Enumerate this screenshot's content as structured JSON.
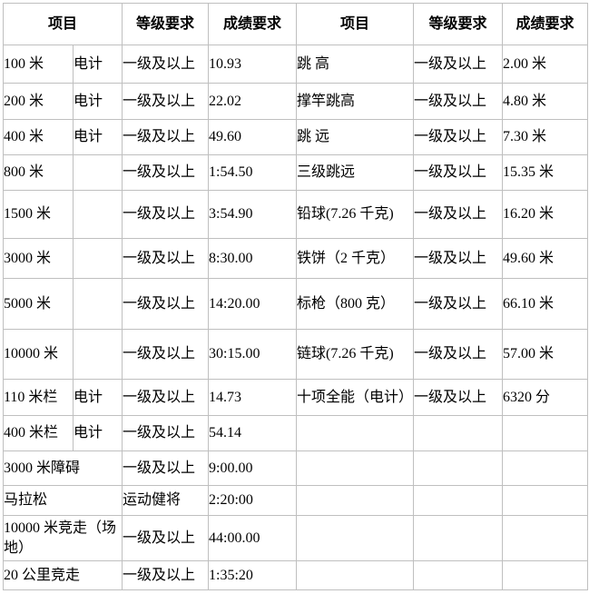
{
  "table": {
    "border_color": "#bfbfbf",
    "text_color": "#000000",
    "background_color": "#ffffff",
    "header": {
      "project": "项目",
      "grade": "等级要求",
      "result": "成绩要求"
    },
    "rows": [
      {
        "l_event": "100 米",
        "l_timing": "电计",
        "l_span": false,
        "l_grade": "一级及以上",
        "l_result": "10.93",
        "r_event": "跳 高",
        "r_grade": "一级及以上",
        "r_result": "2.00 米"
      },
      {
        "l_event": "200 米",
        "l_timing": "电计",
        "l_span": false,
        "l_grade": "一级及以上",
        "l_result": "22.02",
        "r_event": "撑竿跳高",
        "r_grade": "一级及以上",
        "r_result": "4.80 米"
      },
      {
        "l_event": "400 米",
        "l_timing": "电计",
        "l_span": false,
        "l_grade": "一级及以上",
        "l_result": "49.60",
        "r_event": "跳 远",
        "r_grade": "一级及以上",
        "r_result": "7.30 米"
      },
      {
        "l_event": "800 米",
        "l_timing": "",
        "l_span": false,
        "l_grade": "一级及以上",
        "l_result": "1:54.50",
        "r_event": "三级跳远",
        "r_grade": "一级及以上",
        "r_result": "15.35 米"
      },
      {
        "l_event": "1500 米",
        "l_timing": "",
        "l_span": false,
        "l_grade": "一级及以上",
        "l_result": "3:54.90",
        "r_event": "铅球(7.26 千克)",
        "r_grade": "一级及以上",
        "r_result": "16.20 米"
      },
      {
        "l_event": "3000 米",
        "l_timing": "",
        "l_span": false,
        "l_grade": "一级及以上",
        "l_result": "8:30.00",
        "r_event": "铁饼（2 千克）",
        "r_grade": "一级及以上",
        "r_result": "49.60 米"
      },
      {
        "l_event": "5000 米",
        "l_timing": "",
        "l_span": false,
        "l_grade": "一级及以上",
        "l_result": "14:20.00",
        "r_event": "标枪（800 克）",
        "r_grade": "一级及以上",
        "r_result": "66.10 米"
      },
      {
        "l_event": "10000 米",
        "l_timing": "",
        "l_span": false,
        "l_grade": "一级及以上",
        "l_result": "30:15.00",
        "r_event": "链球(7.26 千克)",
        "r_grade": "一级及以上",
        "r_result": "57.00 米"
      },
      {
        "l_event": "110 米栏",
        "l_timing": "电计",
        "l_span": false,
        "l_grade": "一级及以上",
        "l_result": "14.73",
        "r_event": "十项全能（电计）",
        "r_grade": "一级及以上",
        "r_result": "6320 分"
      },
      {
        "l_event": "400 米栏",
        "l_timing": "电计",
        "l_span": false,
        "l_grade": "一级及以上",
        "l_result": "54.14",
        "r_event": "",
        "r_grade": "",
        "r_result": ""
      },
      {
        "l_event": "3000 米障碍",
        "l_timing": null,
        "l_span": true,
        "l_grade": "一级及以上",
        "l_result": "9:00.00",
        "r_event": "",
        "r_grade": "",
        "r_result": ""
      },
      {
        "l_event": "马拉松",
        "l_timing": null,
        "l_span": true,
        "l_grade": "运动健将",
        "l_result": "2:20:00",
        "r_event": "",
        "r_grade": "",
        "r_result": ""
      },
      {
        "l_event": "10000 米竞走（场地）",
        "l_timing": null,
        "l_span": true,
        "l_grade": "一级及以上",
        "l_result": "44:00.00",
        "r_event": "",
        "r_grade": "",
        "r_result": ""
      },
      {
        "l_event": "20 公里竞走",
        "l_timing": null,
        "l_span": true,
        "l_grade": "一级及以上",
        "l_result": "1:35:20",
        "r_event": "",
        "r_grade": "",
        "r_result": ""
      }
    ]
  }
}
